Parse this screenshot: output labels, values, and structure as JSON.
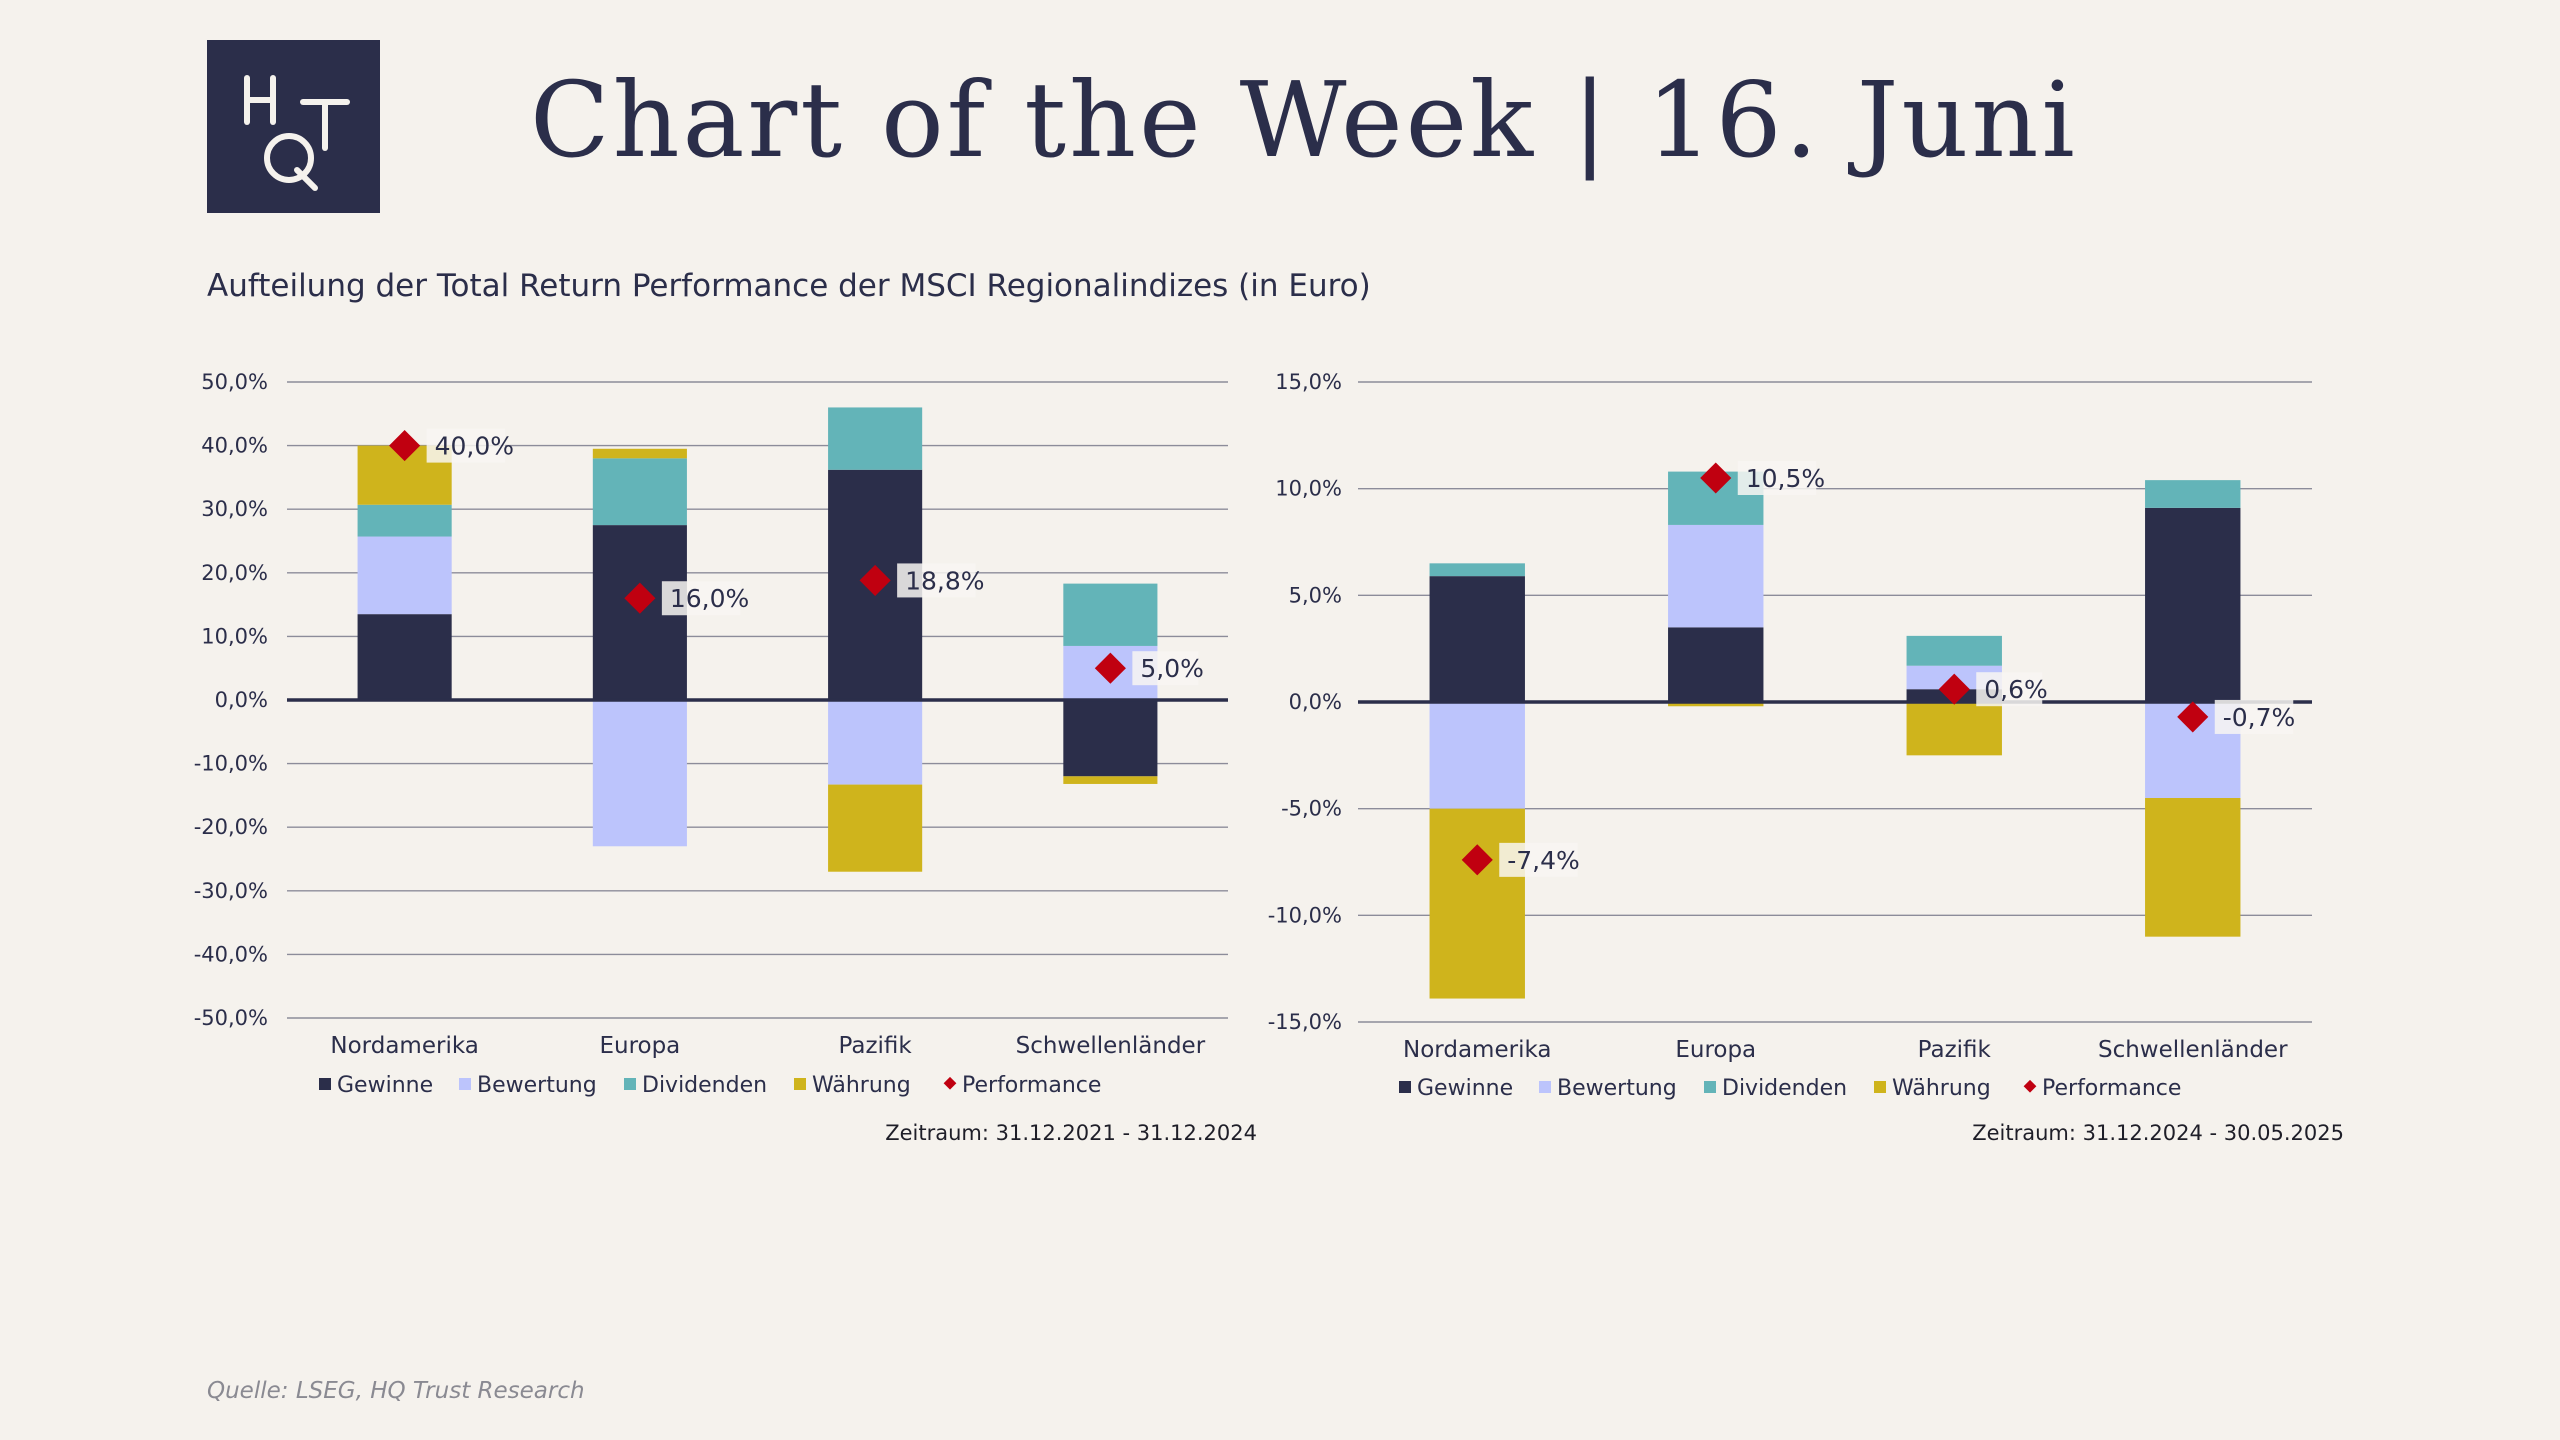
{
  "header": {
    "title": "Chart of the Week | 16. Juni",
    "subtitle": "Aufteilung der Total Return Performance der MSCI Regionalindizes (in Euro)",
    "logo_text": "HQT"
  },
  "footer": {
    "source": "Quelle: LSEG, HQ Trust Research"
  },
  "colors": {
    "Gewinne": "#2b2e4a",
    "Bewertung": "#bcc4fc",
    "Dividenden": "#63b4b8",
    "Währung": "#cfb41c",
    "Performance": "#c00010"
  },
  "chart_data": [
    {
      "type": "bar",
      "stacked": true,
      "categories": [
        "Nordamerika",
        "Europa",
        "Pazifik",
        "Schwellenländer"
      ],
      "series": [
        {
          "name": "Gewinne",
          "values": [
            13.5,
            27.5,
            36.2,
            -12.0
          ]
        },
        {
          "name": "Bewertung",
          "values": [
            12.2,
            -23.0,
            -13.3,
            8.5
          ]
        },
        {
          "name": "Dividenden",
          "values": [
            5.0,
            10.5,
            9.8,
            9.8
          ]
        },
        {
          "name": "Währung",
          "values": [
            9.3,
            1.5,
            -13.7,
            -1.2
          ]
        }
      ],
      "performance": {
        "name": "Performance",
        "values": [
          40.0,
          16.0,
          18.8,
          5.0
        ],
        "labels": [
          "40,0%",
          "16,0%",
          "18,8%",
          "5,0%"
        ]
      },
      "ylim": [
        -50,
        50
      ],
      "yticks": [
        "50,0%",
        "40,0%",
        "30,0%",
        "20,0%",
        "10,0%",
        "0,0%",
        "-10,0%",
        "-20,0%",
        "-30,0%",
        "-40,0%",
        "-50,0%"
      ],
      "ytick_values": [
        50,
        40,
        30,
        20,
        10,
        0,
        -10,
        -20,
        -30,
        -40,
        -50
      ],
      "legend": [
        "Gewinne",
        "Bewertung",
        "Dividenden",
        "Währung",
        "Performance"
      ],
      "legend_position": "bottom",
      "grid": true,
      "period": "Zeitraum: 31.12.2021 - 31.12.2024"
    },
    {
      "type": "bar",
      "stacked": true,
      "categories": [
        "Nordamerika",
        "Europa",
        "Pazifik",
        "Schwellenländer"
      ],
      "series": [
        {
          "name": "Gewinne",
          "values": [
            5.9,
            3.5,
            0.6,
            9.1
          ]
        },
        {
          "name": "Bewertung",
          "values": [
            -5.0,
            4.8,
            1.1,
            -4.5
          ]
        },
        {
          "name": "Dividenden",
          "values": [
            0.6,
            2.5,
            1.4,
            1.3
          ]
        },
        {
          "name": "Währung",
          "values": [
            -8.9,
            -0.2,
            -2.5,
            -6.5
          ]
        }
      ],
      "performance": {
        "name": "Performance",
        "values": [
          -7.4,
          10.5,
          0.6,
          -0.7
        ],
        "labels": [
          "-7,4%",
          "10,5%",
          "0,6%",
          "-0,7%"
        ]
      },
      "ylim": [
        -15,
        15
      ],
      "yticks": [
        "15,0%",
        "10,0%",
        "5,0%",
        "0,0%",
        "-5,0%",
        "-10,0%",
        "-15,0%"
      ],
      "ytick_values": [
        15,
        10,
        5,
        0,
        -5,
        -10,
        -15
      ],
      "legend": [
        "Gewinne",
        "Bewertung",
        "Dividenden",
        "Währung",
        "Performance"
      ],
      "legend_position": "bottom",
      "grid": true,
      "period": "Zeitraum: 31.12.2024 - 30.05.2025"
    }
  ]
}
